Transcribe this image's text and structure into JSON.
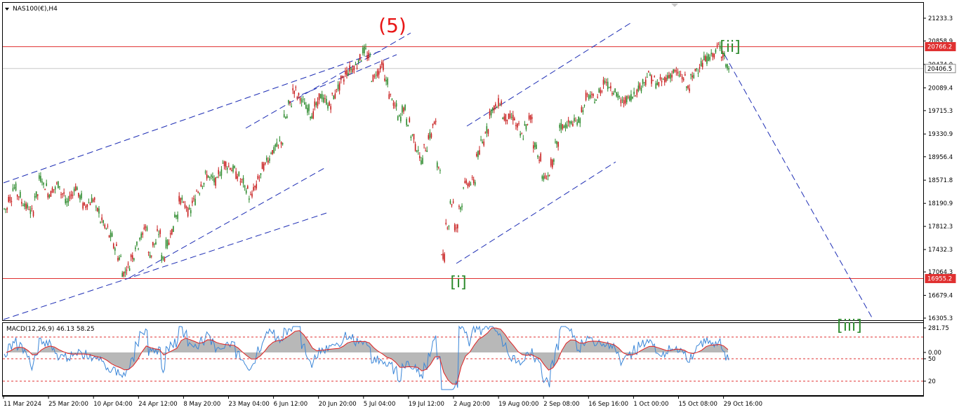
{
  "symbol_title": "NAS100(€),H4",
  "macd_title": "MACD(12,26,9) 46.13 58.25",
  "wave_labels": {
    "w5": "(5)",
    "wi": "[i]",
    "wii": "[ii]",
    "wiii": "[iii]"
  },
  "colors": {
    "bull": "#2e8b2e",
    "bear": "#c81e1e",
    "trendline": "#1f2fb5",
    "hline": "#e03030",
    "current_line": "#c8c8c8",
    "wave_red": "#e81515",
    "wave_green": "#2e8b2e",
    "macd_signal": "#e02020",
    "macd_main": "#3a86d8",
    "macd_hist": "#b8b8b8"
  },
  "chart_data": {
    "type": "candlestick",
    "price_axis": {
      "range": [
        16305.3,
        21330
      ],
      "ticks": [
        "21233.3",
        "20858.9",
        "20474.0",
        "20089.4",
        "19715.3",
        "19330.9",
        "18956.4",
        "18571.8",
        "18190.9",
        "17812.3",
        "17432.3",
        "17064.3",
        "16679.4",
        "16305.3"
      ]
    },
    "price_labels": {
      "resistance": "20766.2",
      "current": "20406.5",
      "support": "16955.2"
    },
    "horizontal_lines": [
      {
        "name": "resistance",
        "value": 20766.2
      },
      {
        "name": "current",
        "value": 20406.5
      },
      {
        "name": "support",
        "value": 16955.2
      }
    ],
    "time_ticks": [
      "11 Mar 2024",
      "25 Mar 20:00",
      "10 Apr 04:00",
      "24 Apr 12:00",
      "8 May 20:00",
      "23 May 04:00",
      "6 Jun 12:00",
      "20 Jun 20:00",
      "5 Jul 04:00",
      "19 Jul 12:00",
      "2 Aug 20:00",
      "19 Aug 00:00",
      "2 Sep 08:00",
      "16 Sep 16:00",
      "1 Oct 00:00",
      "15 Oct 08:00",
      "29 Oct 16:00"
    ],
    "price_path": [
      [
        0,
        18100
      ],
      [
        2,
        18450
      ],
      [
        4,
        18200
      ],
      [
        6,
        18050
      ],
      [
        8,
        18600
      ],
      [
        10,
        18350
      ],
      [
        12,
        18500
      ],
      [
        14,
        18200
      ],
      [
        16,
        18450
      ],
      [
        18,
        18150
      ],
      [
        20,
        18250
      ],
      [
        22,
        17900
      ],
      [
        24,
        17650
      ],
      [
        26,
        17300
      ],
      [
        27,
        17050
      ],
      [
        28,
        17150
      ],
      [
        30,
        17500
      ],
      [
        32,
        17800
      ],
      [
        33,
        17350
      ],
      [
        35,
        17700
      ],
      [
        36,
        17300
      ],
      [
        38,
        17750
      ],
      [
        40,
        18250
      ],
      [
        42,
        18050
      ],
      [
        44,
        18400
      ],
      [
        46,
        18650
      ],
      [
        48,
        18550
      ],
      [
        50,
        18850
      ],
      [
        52,
        18750
      ],
      [
        54,
        18550
      ],
      [
        56,
        18300
      ],
      [
        57,
        18450
      ],
      [
        59,
        18800
      ],
      [
        61,
        19050
      ],
      [
        63,
        19200
      ],
      [
        64,
        19600
      ],
      [
        66,
        20050
      ],
      [
        68,
        19850
      ],
      [
        70,
        19650
      ],
      [
        72,
        19950
      ],
      [
        74,
        19800
      ],
      [
        76,
        20100
      ],
      [
        78,
        20350
      ],
      [
        80,
        20450
      ],
      [
        82,
        20700
      ],
      [
        83,
        20600
      ],
      [
        84,
        20250
      ],
      [
        86,
        20450
      ],
      [
        88,
        19950
      ],
      [
        90,
        19600
      ],
      [
        91,
        19750
      ],
      [
        93,
        19300
      ],
      [
        95,
        18900
      ],
      [
        97,
        19300
      ],
      [
        98,
        19500
      ],
      [
        99,
        18800
      ],
      [
        100,
        17300
      ],
      [
        101,
        17850
      ],
      [
        102,
        18200
      ],
      [
        103,
        17800
      ],
      [
        105,
        18500
      ],
      [
        107,
        18550
      ],
      [
        108,
        19000
      ],
      [
        110,
        19400
      ],
      [
        111,
        19700
      ],
      [
        113,
        19850
      ],
      [
        114,
        19600
      ],
      [
        116,
        19600
      ],
      [
        118,
        19300
      ],
      [
        120,
        19600
      ],
      [
        121,
        19150
      ],
      [
        122,
        18950
      ],
      [
        123,
        18600
      ],
      [
        124,
        18650
      ],
      [
        125,
        18850
      ],
      [
        127,
        19450
      ],
      [
        129,
        19500
      ],
      [
        131,
        19550
      ],
      [
        133,
        19950
      ],
      [
        135,
        19900
      ],
      [
        137,
        20200
      ],
      [
        139,
        20050
      ],
      [
        141,
        19850
      ],
      [
        143,
        19950
      ],
      [
        145,
        20100
      ],
      [
        147,
        20300
      ],
      [
        149,
        20150
      ],
      [
        151,
        20250
      ],
      [
        153,
        20350
      ],
      [
        155,
        20250
      ],
      [
        156,
        20100
      ],
      [
        158,
        20400
      ],
      [
        160,
        20550
      ],
      [
        162,
        20650
      ],
      [
        163,
        20766
      ],
      [
        164,
        20650
      ],
      [
        165,
        20420
      ]
    ],
    "macd": {
      "levels": [
        "281.75",
        "0.00",
        "50",
        "20"
      ],
      "values": {
        "macd": 46.13,
        "signal": 58.25
      }
    }
  }
}
